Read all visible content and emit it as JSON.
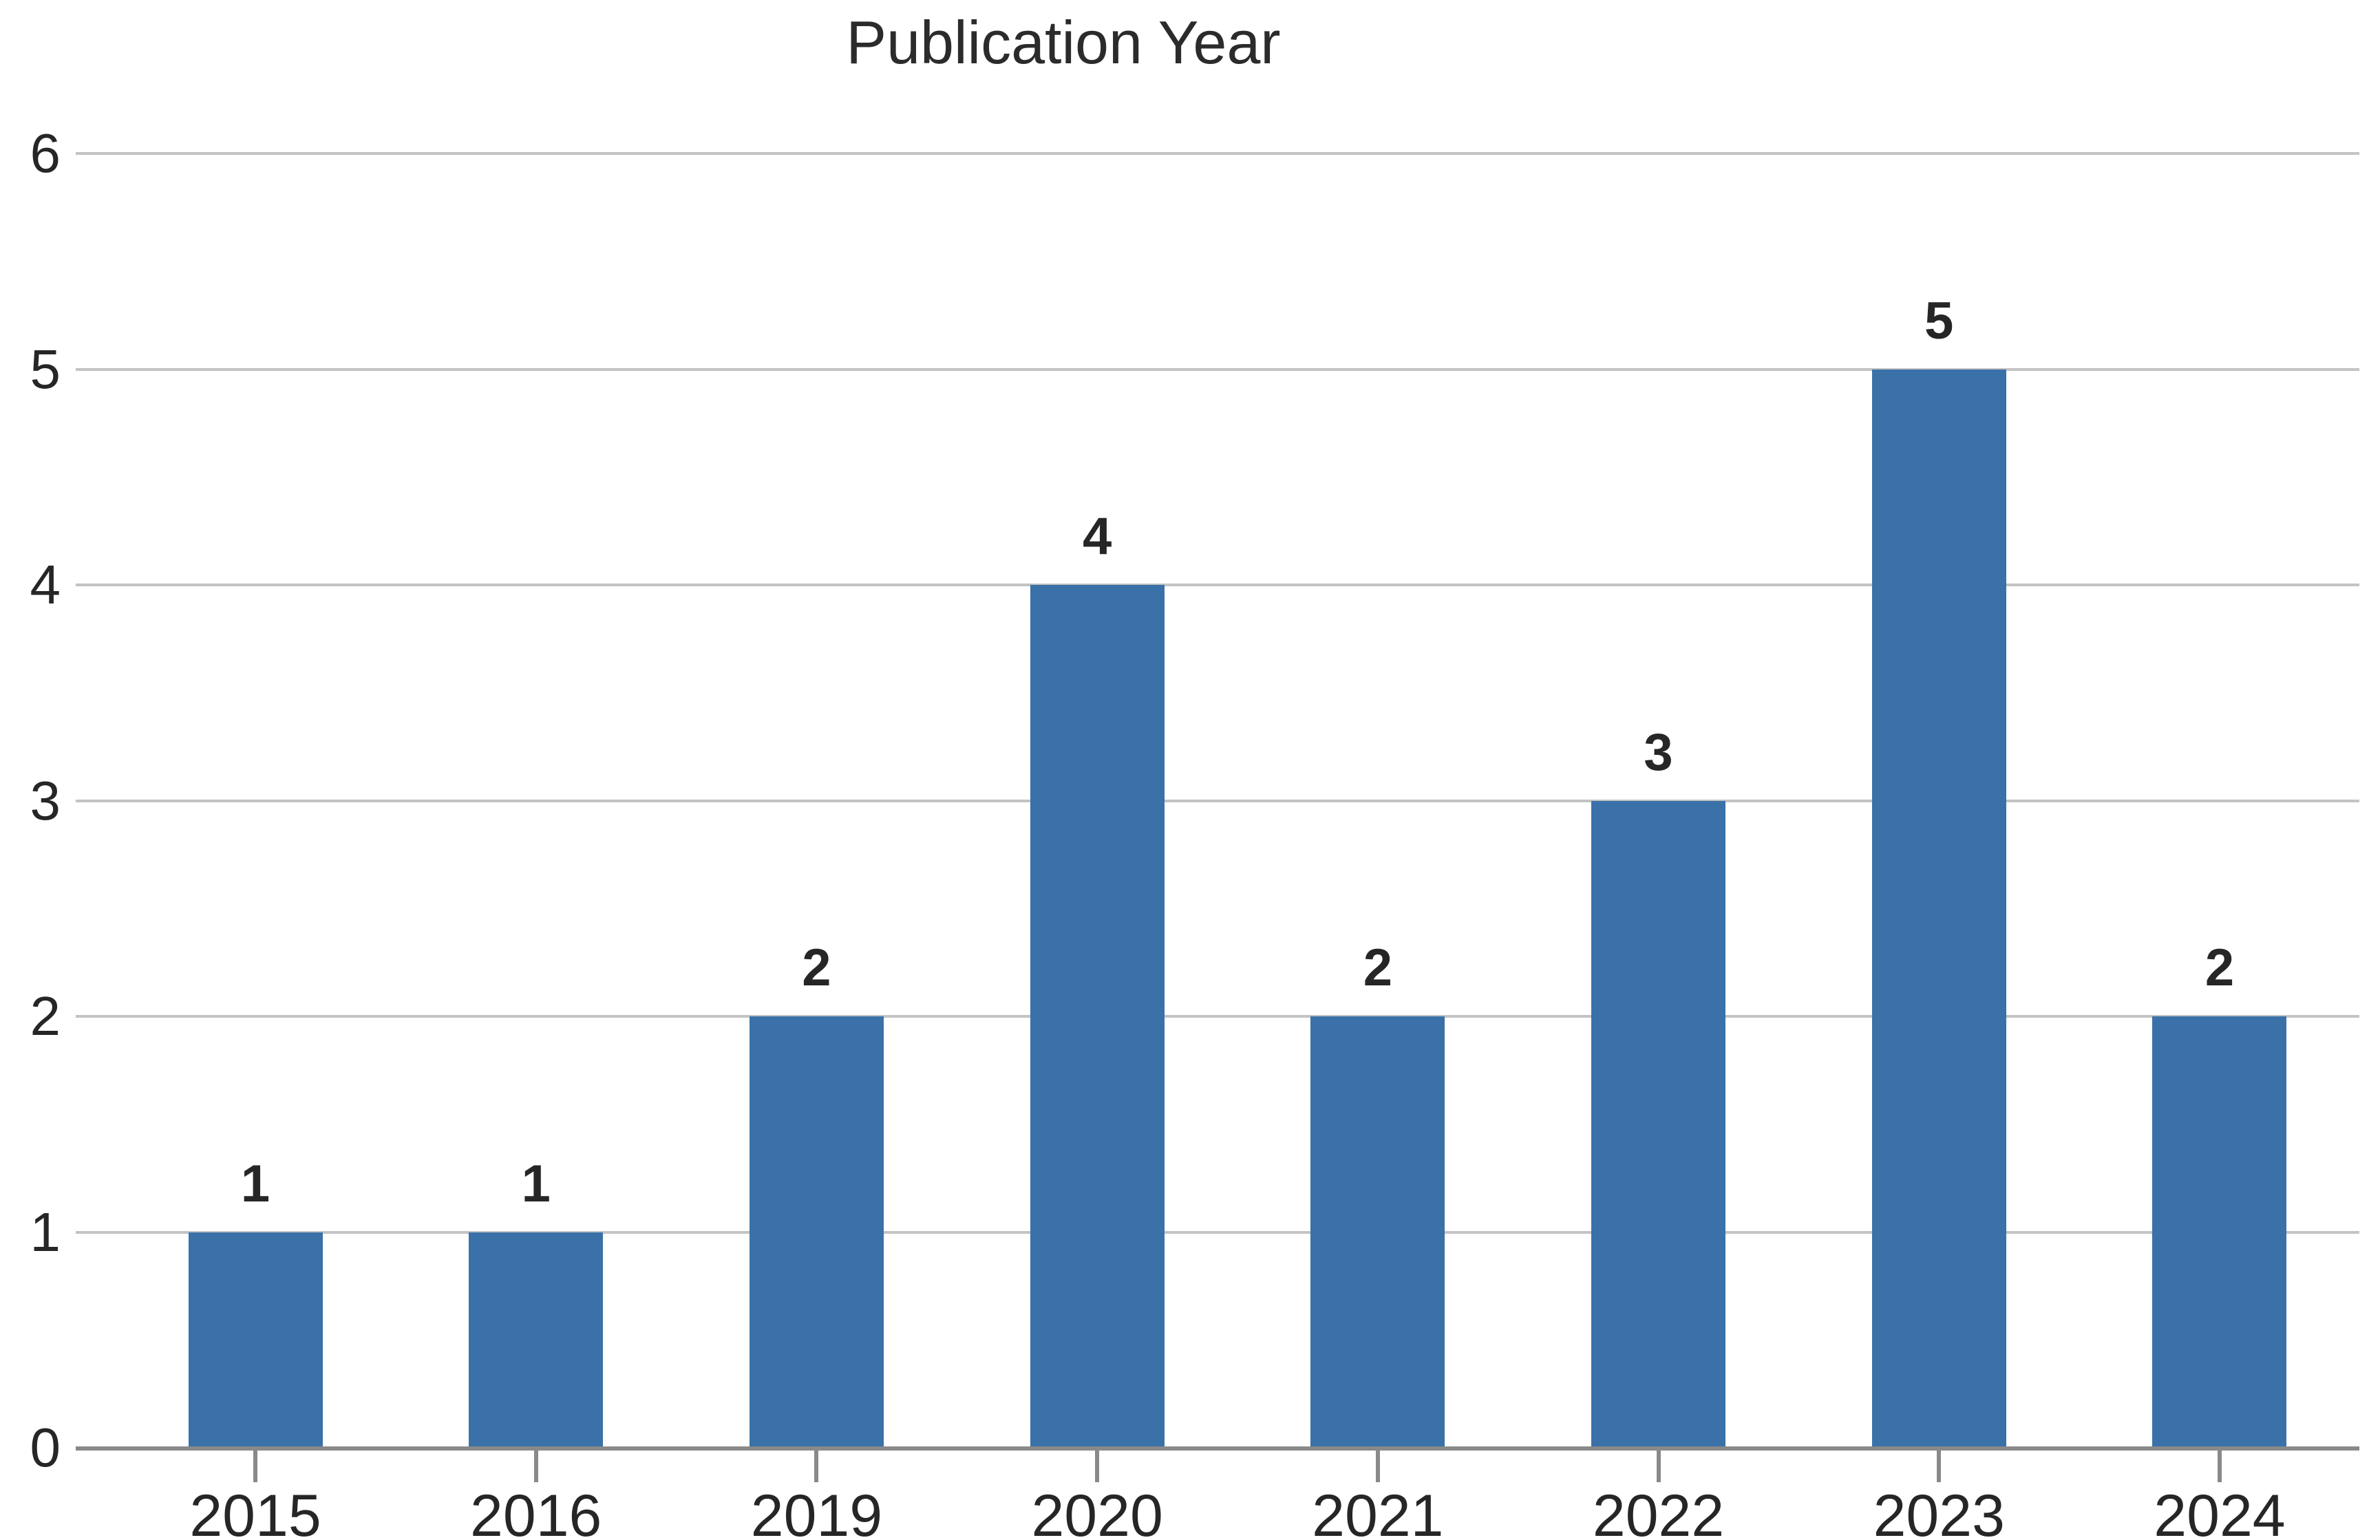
{
  "chart_data": {
    "type": "bar",
    "title": "Publication Year",
    "categories": [
      "2015",
      "2016",
      "2019",
      "2020",
      "2021",
      "2022",
      "2023",
      "2024"
    ],
    "values": [
      1,
      1,
      2,
      4,
      2,
      3,
      5,
      2
    ],
    "xlabel": "",
    "ylabel": "",
    "y_ticks": [
      0,
      1,
      2,
      3,
      4,
      5,
      6
    ],
    "ylim": [
      0,
      6
    ],
    "grid": true,
    "legend_position": "none",
    "bar_labels_shown": true,
    "colors": {
      "bar": "#3a71a8",
      "gridline": "#c3c3c3",
      "axis": "#898989",
      "text": "#262626",
      "background": "#ffffff"
    }
  }
}
